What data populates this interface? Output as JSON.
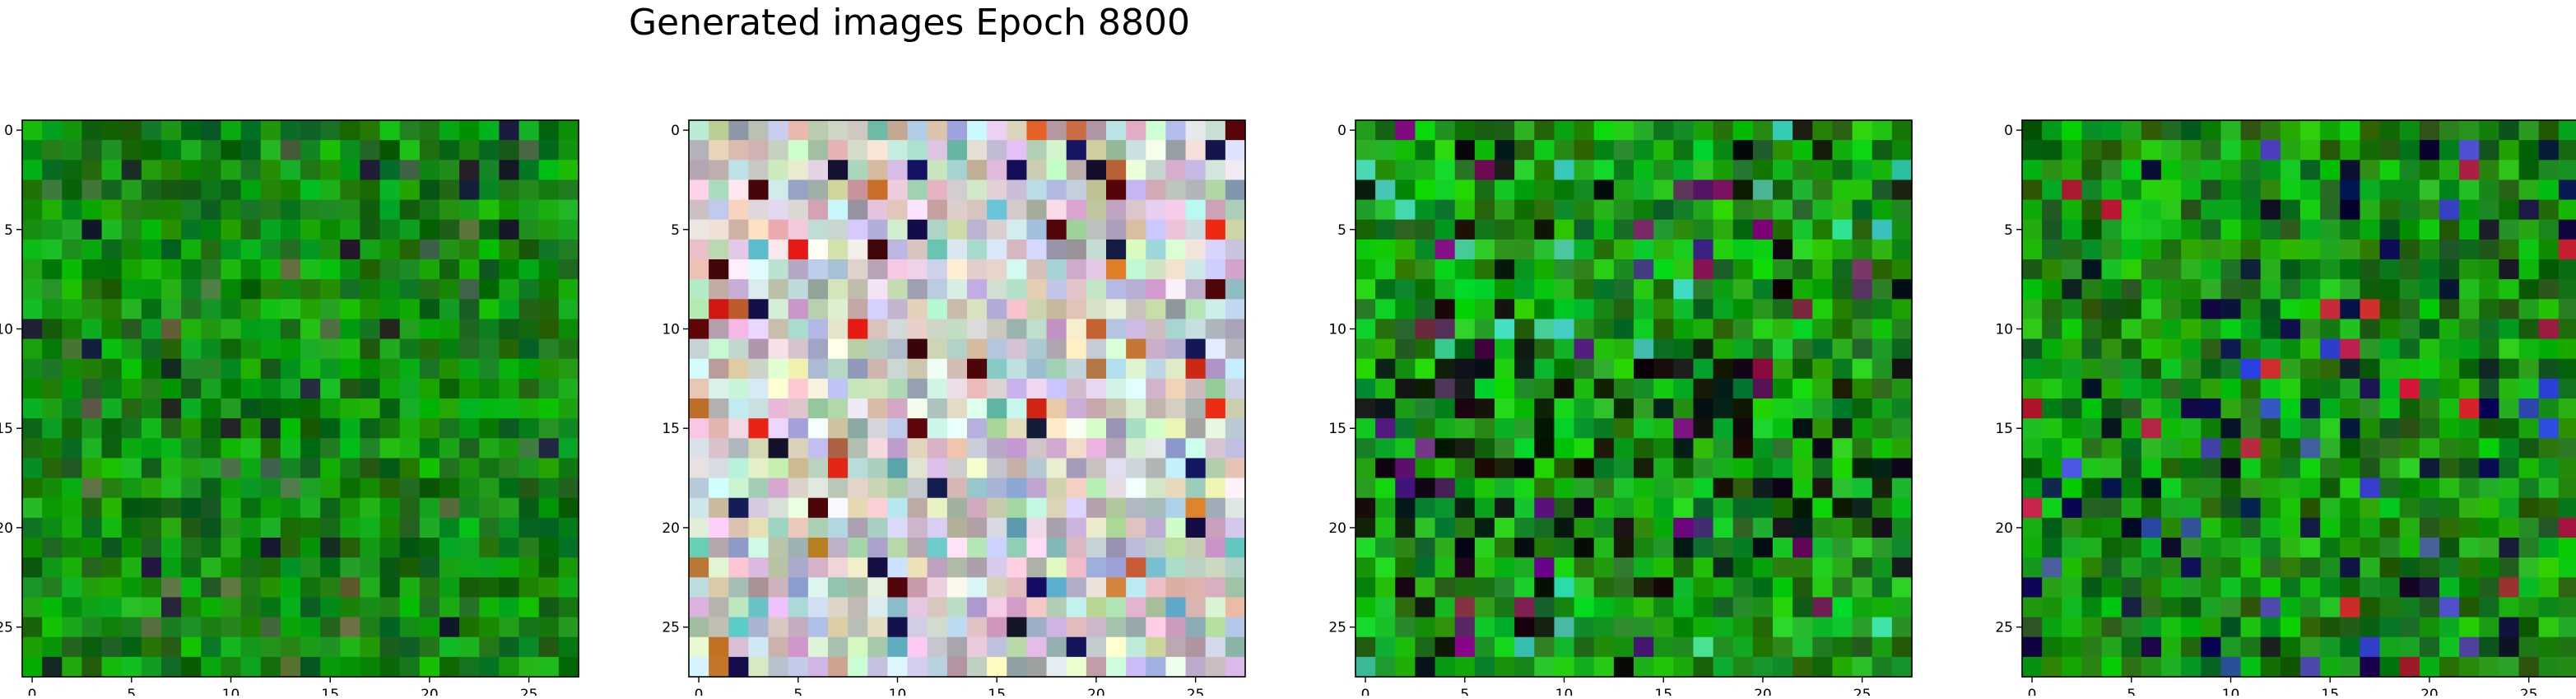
{
  "figure": {
    "title": "Generated images Epoch 8800"
  },
  "chart_data": [
    {
      "type": "heatmap",
      "title": "",
      "xlabel": "",
      "ylabel": "",
      "grid_size": 28,
      "xlim": [
        -0.5,
        27.5
      ],
      "ylim": [
        27.5,
        -0.5
      ],
      "x_ticks": [
        "0",
        "5",
        "10",
        "15",
        "20",
        "25"
      ],
      "y_ticks": [
        "0",
        "5",
        "10",
        "15",
        "20",
        "25"
      ],
      "grid": false,
      "palette": "green",
      "seed": 11
    },
    {
      "type": "heatmap",
      "title": "",
      "xlabel": "",
      "ylabel": "",
      "grid_size": 28,
      "xlim": [
        -0.5,
        27.5
      ],
      "ylim": [
        27.5,
        -0.5
      ],
      "x_ticks": [
        "0",
        "5",
        "10",
        "15",
        "20",
        "25"
      ],
      "y_ticks": [
        "0",
        "5",
        "10",
        "15",
        "20",
        "25"
      ],
      "grid": false,
      "palette": "pastel",
      "seed": 23
    },
    {
      "type": "heatmap",
      "title": "",
      "xlabel": "",
      "ylabel": "",
      "grid_size": 28,
      "xlim": [
        -0.5,
        27.5
      ],
      "ylim": [
        27.5,
        -0.5
      ],
      "x_ticks": [
        "0",
        "5",
        "10",
        "15",
        "20",
        "25"
      ],
      "y_ticks": [
        "0",
        "5",
        "10",
        "15",
        "20",
        "25"
      ],
      "grid": false,
      "palette": "green-dark",
      "seed": 37
    },
    {
      "type": "heatmap",
      "title": "",
      "xlabel": "",
      "ylabel": "",
      "grid_size": 28,
      "xlim": [
        -0.5,
        27.5
      ],
      "ylim": [
        27.5,
        -0.5
      ],
      "x_ticks": [
        "0",
        "5",
        "10",
        "15",
        "20",
        "25"
      ],
      "y_ticks": [
        "0",
        "5",
        "10",
        "15",
        "20",
        "25"
      ],
      "grid": false,
      "palette": "green-mixed",
      "seed": 51
    }
  ]
}
